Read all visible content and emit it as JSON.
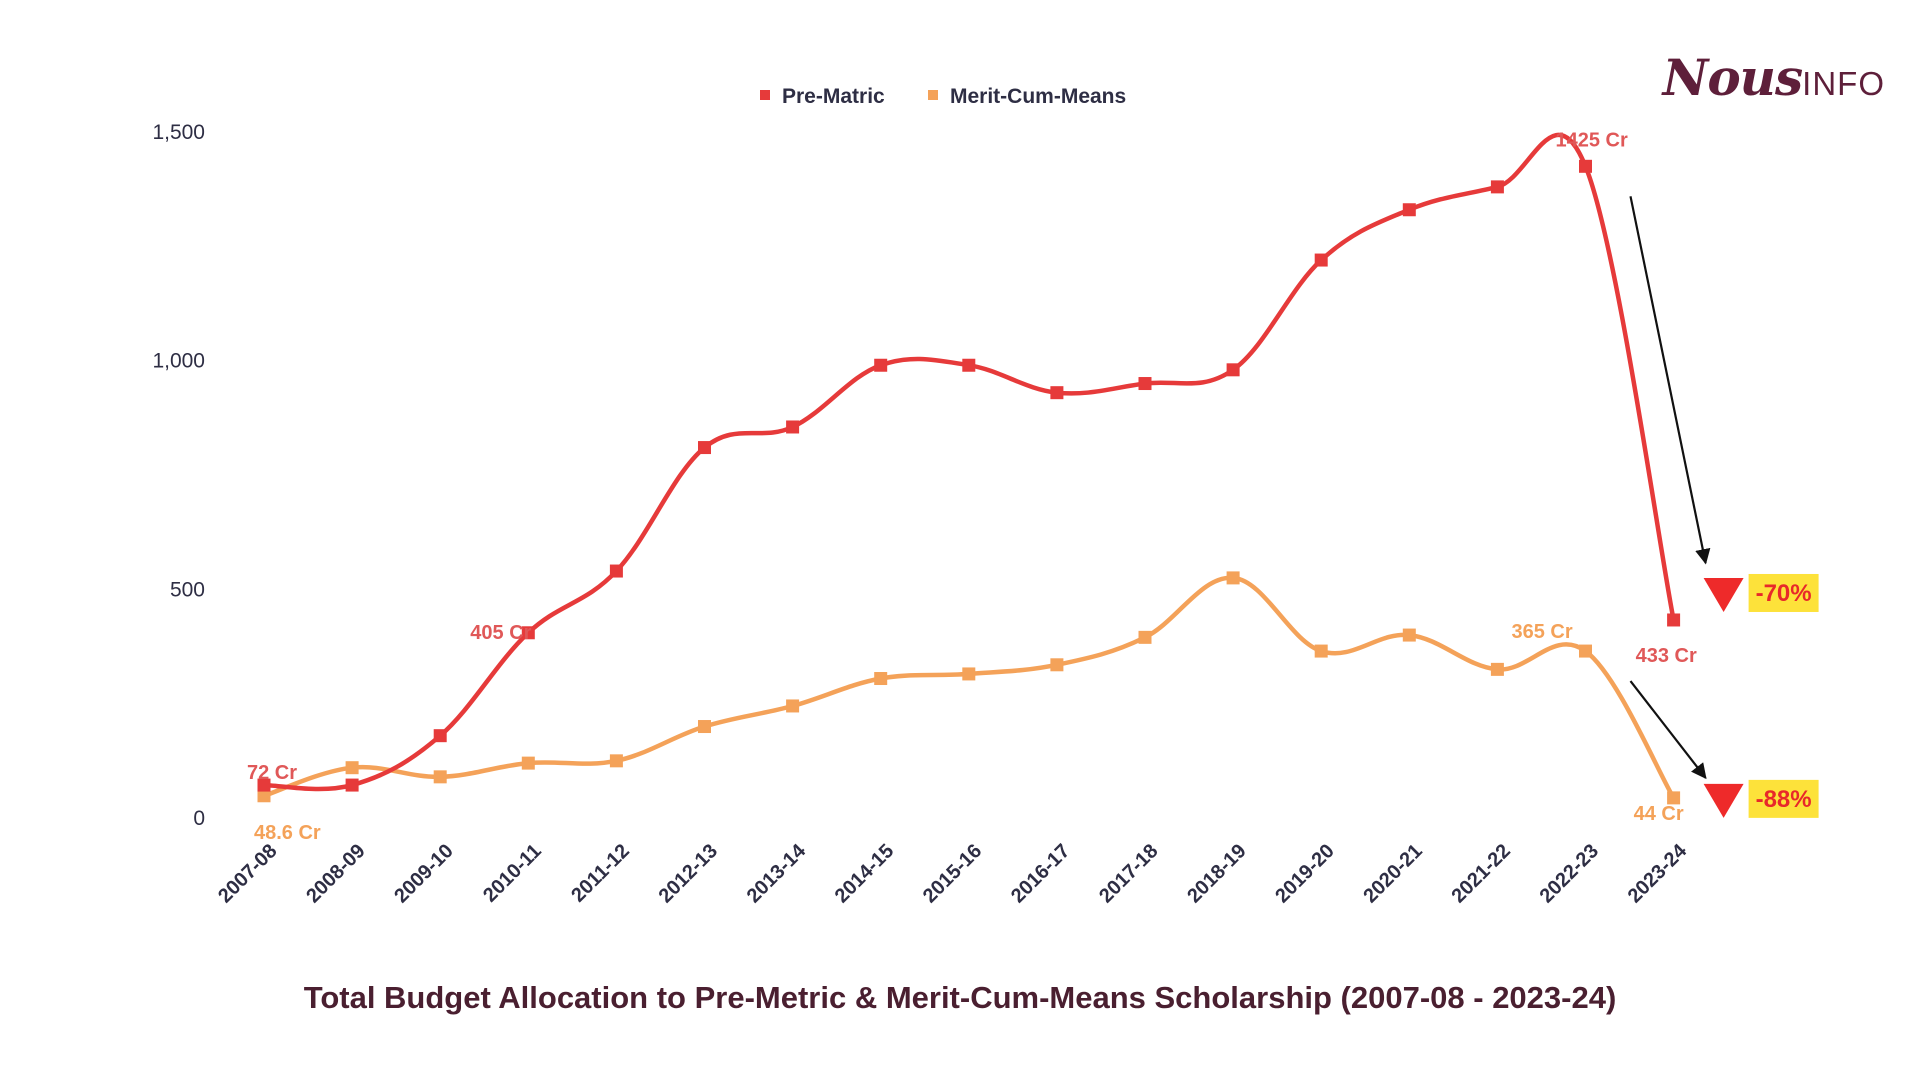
{
  "brand": {
    "name_main": "Nous",
    "name_suffix": "INFO"
  },
  "colors": {
    "pre_matric": "#e63a3a",
    "merit": "#f4a259",
    "pre_matric_label": "#e05858",
    "badge_bg": "#fde23a",
    "badge_text": "#e8282a",
    "axis_text": "#2e2e44"
  },
  "chart_data": {
    "type": "line",
    "title": "Total Budget Allocation to Pre-Metric & Merit-Cum-Means Scholarship (2007-08 - 2023-24)",
    "xlabel": "",
    "ylabel": "",
    "ylim": [
      0,
      1500
    ],
    "y_ticks": [
      0,
      500,
      1000,
      1500
    ],
    "y_tick_labels": [
      "0",
      "500",
      "1,000",
      "1,500"
    ],
    "grid": false,
    "legend_position": "top-center",
    "categories": [
      "2007-08",
      "2008-09",
      "2009-10",
      "2010-11",
      "2011-12",
      "2012-13",
      "2013-14",
      "2014-15",
      "2015-16",
      "2016-17",
      "2017-18",
      "2018-19",
      "2019-20",
      "2020-21",
      "2021-22",
      "2022-23",
      "2023-24"
    ],
    "series": [
      {
        "name": "Pre-Matric",
        "values": [
          72,
          72,
          180,
          405,
          540,
          810,
          855,
          990,
          990,
          930,
          950,
          980,
          1220,
          1330,
          1380,
          1425,
          433
        ]
      },
      {
        "name": "Merit-Cum-Means",
        "values": [
          48.6,
          110,
          90,
          120,
          125,
          200,
          245,
          305,
          315,
          335,
          395,
          525,
          365,
          400,
          325,
          365,
          44
        ]
      }
    ],
    "annotations": [
      {
        "text": "72 Cr",
        "series": 0,
        "index": 0
      },
      {
        "text": "405 Cr",
        "series": 0,
        "index": 3
      },
      {
        "text": "1425 Cr",
        "series": 0,
        "index": 15
      },
      {
        "text": "433 Cr",
        "series": 0,
        "index": 16
      },
      {
        "text": "48.6 Cr",
        "series": 1,
        "index": 0
      },
      {
        "text": "365 Cr",
        "series": 1,
        "index": 15
      },
      {
        "text": "44 Cr",
        "series": 1,
        "index": 16
      }
    ],
    "changes": [
      {
        "text": "-70%",
        "series": 0
      },
      {
        "text": "-88%",
        "series": 1
      }
    ]
  }
}
